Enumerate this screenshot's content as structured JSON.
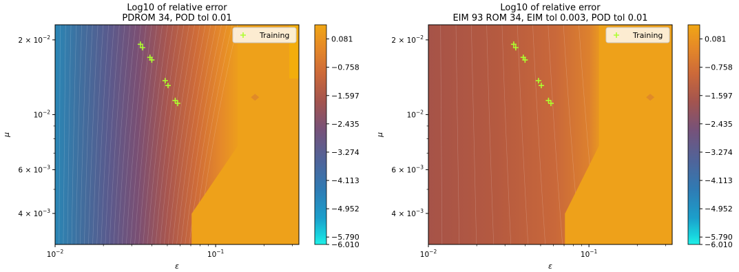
{
  "chart_data": [
    {
      "type": "heatmap",
      "title": "Log10 of relative error",
      "subtitle": "PDROM 34, POD tol 0.01",
      "xlabel": "ε",
      "ylabel": "μ",
      "xscale": "log",
      "yscale": "log",
      "xlim": [
        0.01,
        0.33
      ],
      "ylim": [
        0.003,
        0.023
      ],
      "x_ticks": [
        {
          "value": 0.01,
          "base": "10",
          "exp": "−2"
        },
        {
          "value": 0.1,
          "base": "10",
          "exp": "−1"
        }
      ],
      "y_ticks": [
        {
          "value": 0.004,
          "mant": "4 × 10",
          "exp": "−3"
        },
        {
          "value": 0.006,
          "mant": "6 × 10",
          "exp": "−3"
        },
        {
          "value": 0.01,
          "mant": "10",
          "exp": "−2"
        },
        {
          "value": 0.02,
          "mant": "2 × 10",
          "exp": "−2"
        }
      ],
      "legend": {
        "label": "Training",
        "marker": "+",
        "color": "#adff2f",
        "position": "top-right"
      },
      "training_points": [
        {
          "x": 0.034,
          "y": 0.0192
        },
        {
          "x": 0.035,
          "y": 0.0186
        },
        {
          "x": 0.039,
          "y": 0.017
        },
        {
          "x": 0.04,
          "y": 0.0166
        },
        {
          "x": 0.0485,
          "y": 0.0137
        },
        {
          "x": 0.0505,
          "y": 0.0131
        },
        {
          "x": 0.056,
          "y": 0.0114
        },
        {
          "x": 0.058,
          "y": 0.0111
        }
      ],
      "field": {
        "description": "error rises from left (near -6) to right (about 0); plateau near 0.08 for eps above 0.14",
        "left_level": -4.9,
        "plateau_level": 0.081
      },
      "colorbar": {
        "min": -6.01,
        "max": 0.5,
        "ticks": [
          "0.081",
          "−0.758",
          "−1.597",
          "−2.435",
          "−3.274",
          "−4.113",
          "−4.952",
          "−5.790",
          "−6.010"
        ],
        "tick_values": [
          0.081,
          -0.758,
          -1.597,
          -2.435,
          -3.274,
          -4.113,
          -4.952,
          -5.79,
          -6.01
        ]
      }
    },
    {
      "type": "heatmap",
      "title": "Log10 of relative error",
      "subtitle": "EIM 93 ROM 34, EIM tol 0.003, POD tol 0.01",
      "xlabel": "ε",
      "ylabel": "μ",
      "xscale": "log",
      "yscale": "log",
      "xlim": [
        0.01,
        0.33
      ],
      "ylim": [
        0.003,
        0.023
      ],
      "x_ticks": [
        {
          "value": 0.01,
          "base": "10",
          "exp": "−2"
        },
        {
          "value": 0.1,
          "base": "10",
          "exp": "−1"
        }
      ],
      "y_ticks": [
        {
          "value": 0.004,
          "mant": "4 × 10",
          "exp": "−3"
        },
        {
          "value": 0.006,
          "mant": "6 × 10",
          "exp": "−3"
        },
        {
          "value": 0.01,
          "mant": "10",
          "exp": "−2"
        },
        {
          "value": 0.02,
          "mant": "2 × 10",
          "exp": "−2"
        }
      ],
      "legend": {
        "label": "Training",
        "marker": "+",
        "color": "#adff2f",
        "position": "top-right"
      },
      "training_points": [
        {
          "x": 0.034,
          "y": 0.0192
        },
        {
          "x": 0.035,
          "y": 0.0186
        },
        {
          "x": 0.039,
          "y": 0.017
        },
        {
          "x": 0.04,
          "y": 0.0166
        },
        {
          "x": 0.0485,
          "y": 0.0137
        },
        {
          "x": 0.0505,
          "y": 0.0131
        },
        {
          "x": 0.056,
          "y": 0.0114
        },
        {
          "x": 0.058,
          "y": 0.0111
        }
      ],
      "field": {
        "description": "moderate error (about -2 to -2.5) on the left rising to plateau near 0.08 for eps above 0.15",
        "left_level": -2.6,
        "plateau_level": 0.081
      },
      "colorbar": {
        "min": -6.01,
        "max": 0.5,
        "ticks": [
          "0.081",
          "−0.758",
          "−1.597",
          "−2.435",
          "−3.274",
          "−4.113",
          "−4.952",
          "−5.790",
          "−6.010"
        ],
        "tick_values": [
          0.081,
          -0.758,
          -1.597,
          -2.435,
          -3.274,
          -4.113,
          -4.952,
          -5.79,
          -6.01
        ]
      }
    }
  ]
}
